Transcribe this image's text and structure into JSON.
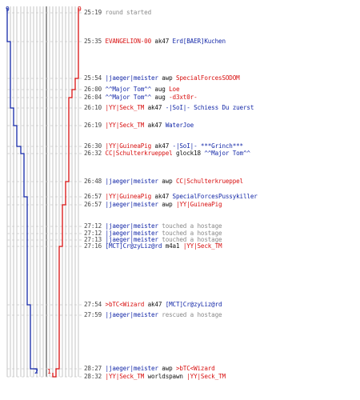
{
  "scores": {
    "blue_start": "9",
    "red_start": "9",
    "blue_end": "2",
    "red_end": "1"
  },
  "colors": {
    "red": "#d81010",
    "blue": "#1428a8",
    "action": "#8a8a8a",
    "weapon": "#111111",
    "time": "#444444",
    "grid": "#b8b8b8"
  },
  "events": [
    {
      "time": "25:19",
      "parts": [
        {
          "text": "round started",
          "style": "grey"
        }
      ]
    },
    {
      "time": "25:35",
      "parts": [
        {
          "text": "EVANGELION-00",
          "style": "red"
        },
        {
          "text": " ak47 ",
          "style": "dark"
        },
        {
          "text": "Erd[BAER]Kuchen",
          "style": "blue"
        }
      ]
    },
    {
      "time": "25:54",
      "parts": [
        {
          "text": "|jaeger|meister",
          "style": "blue"
        },
        {
          "text": " awp ",
          "style": "dark"
        },
        {
          "text": "SpecialForcesSODOM",
          "style": "red"
        }
      ]
    },
    {
      "time": "26:00",
      "parts": [
        {
          "text": "^^Major Tom^^",
          "style": "blue"
        },
        {
          "text": " aug ",
          "style": "dark"
        },
        {
          "text": "Loe",
          "style": "red"
        }
      ]
    },
    {
      "time": "26:04",
      "parts": [
        {
          "text": "^^Major Tom^^",
          "style": "blue"
        },
        {
          "text": " aug ",
          "style": "dark"
        },
        {
          "text": "-d3xt0r-",
          "style": "red"
        }
      ]
    },
    {
      "time": "26:10",
      "parts": [
        {
          "text": "|YY|Seck_TM",
          "style": "red"
        },
        {
          "text": " ak47 ",
          "style": "dark"
        },
        {
          "text": "-|SoI|- Schiess Du zuerst",
          "style": "blue"
        }
      ]
    },
    {
      "time": "26:19",
      "parts": [
        {
          "text": "|YY|Seck_TM",
          "style": "red"
        },
        {
          "text": " ak47 ",
          "style": "dark"
        },
        {
          "text": "WaterJoe",
          "style": "blue"
        }
      ]
    },
    {
      "time": "26:30",
      "parts": [
        {
          "text": "|YY|GuineaPig",
          "style": "red"
        },
        {
          "text": " ak47 ",
          "style": "dark"
        },
        {
          "text": "-|SoI|- ***Grinch***",
          "style": "blue"
        }
      ]
    },
    {
      "time": "26:32",
      "parts": [
        {
          "text": "CC|Schulterkrueppel",
          "style": "red"
        },
        {
          "text": " glock18 ",
          "style": "dark"
        },
        {
          "text": "^^Major Tom^^",
          "style": "blue"
        }
      ]
    },
    {
      "time": "26:48",
      "parts": [
        {
          "text": "|jaeger|meister",
          "style": "blue"
        },
        {
          "text": " awp ",
          "style": "dark"
        },
        {
          "text": "CC|Schulterkrueppel",
          "style": "red"
        }
      ]
    },
    {
      "time": "26:57",
      "parts": [
        {
          "text": "|YY|GuineaPig",
          "style": "red"
        },
        {
          "text": " ak47 ",
          "style": "dark"
        },
        {
          "text": "SpecialForcesPussykiller",
          "style": "blue"
        }
      ]
    },
    {
      "time": "26:57",
      "parts": [
        {
          "text": "|jaeger|meister",
          "style": "blue"
        },
        {
          "text": " awp ",
          "style": "dark"
        },
        {
          "text": "|YY|GuineaPig",
          "style": "red"
        }
      ]
    },
    {
      "time": "27:12",
      "parts": [
        {
          "text": "|jaeger|meister",
          "style": "blue"
        },
        {
          "text": " touched a hostage",
          "style": "grey"
        }
      ]
    },
    {
      "time": "27:12",
      "parts": [
        {
          "text": "|jaeger|meister",
          "style": "blue"
        },
        {
          "text": " touched a hostage",
          "style": "grey"
        }
      ]
    },
    {
      "time": "27:13",
      "parts": [
        {
          "text": "|jaeger|meister",
          "style": "blue"
        },
        {
          "text": " touched a hostage",
          "style": "grey"
        }
      ]
    },
    {
      "time": "27:16",
      "parts": [
        {
          "text": "[MCT]Cr@zyLiz@rd",
          "style": "blue"
        },
        {
          "text": " m4a1 ",
          "style": "dark"
        },
        {
          "text": "|YY|Seck_TM",
          "style": "red"
        }
      ]
    },
    {
      "time": "27:54",
      "parts": [
        {
          "text": ">bTC<Wizard",
          "style": "red"
        },
        {
          "text": " ak47 ",
          "style": "dark"
        },
        {
          "text": "[MCT]Cr@zyLiz@rd",
          "style": "blue"
        }
      ]
    },
    {
      "time": "27:59",
      "parts": [
        {
          "text": "|jaeger|meister",
          "style": "blue"
        },
        {
          "text": " rescued a hostage",
          "style": "grey"
        }
      ]
    },
    {
      "time": "28:27",
      "parts": [
        {
          "text": "|jaeger|meister",
          "style": "blue"
        },
        {
          "text": " awp ",
          "style": "dark"
        },
        {
          "text": ">bTC<Wizard",
          "style": "red"
        }
      ]
    },
    {
      "time": "28:32",
      "parts": [
        {
          "text": "|YY|Seck_TM",
          "style": "red"
        },
        {
          "text": " worldspawn ",
          "style": "dark"
        },
        {
          "text": "|YY|Seck_TM",
          "style": "red"
        }
      ]
    }
  ]
}
